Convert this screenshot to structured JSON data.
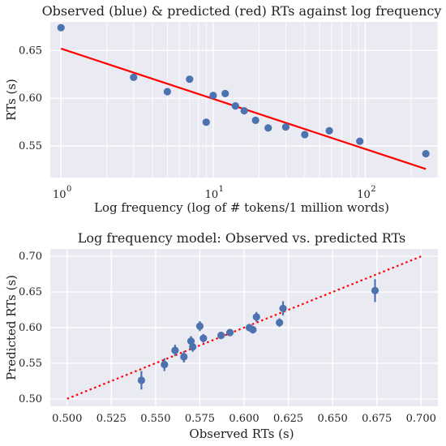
{
  "chart_data": [
    {
      "type": "scatter",
      "title": "Observed (blue) & predicted (red) RTs against log frequency",
      "xlabel": "Log frequency (log of # tokens/1 million words)",
      "ylabel": "RTs (s)",
      "xscale": "log",
      "xlim": [
        0.85,
        300
      ],
      "ylim": [
        0.517,
        0.68
      ],
      "xticks": [
        1,
        10,
        100
      ],
      "xtick_labels": [
        "10",
        "10",
        "10"
      ],
      "xtick_exponents": [
        "0",
        "1",
        "2"
      ],
      "yticks": [
        0.55,
        0.6,
        0.65
      ],
      "ytick_labels": [
        "0.55",
        "0.60",
        "0.65"
      ],
      "grid": true,
      "colors": {
        "observed": "#4c72b0",
        "predicted": "#ff0000",
        "background": "#eaeaf2",
        "grid": "#ffffff"
      },
      "series": [
        {
          "kind": "points",
          "x": [
            1,
            3,
            5,
            7,
            9,
            10,
            12,
            14,
            16,
            19,
            23,
            30,
            40,
            58,
            92,
            250
          ],
          "y": [
            0.674,
            0.622,
            0.607,
            0.62,
            0.575,
            0.603,
            0.605,
            0.592,
            0.587,
            0.577,
            0.569,
            0.57,
            0.562,
            0.566,
            0.555,
            0.542
          ]
        },
        {
          "kind": "line",
          "x": [
            1,
            250
          ],
          "y": [
            0.652,
            0.526
          ]
        }
      ]
    },
    {
      "type": "scatter",
      "title": "Log frequency model: Observed vs. predicted RTs",
      "xlabel": "Observed RTs (s)",
      "ylabel": "Predicted RTs (s)",
      "xlim": [
        0.4905,
        0.7095
      ],
      "ylim": [
        0.4895,
        0.7105
      ],
      "xticks": [
        0.5,
        0.525,
        0.55,
        0.575,
        0.6,
        0.625,
        0.65,
        0.675,
        0.7
      ],
      "xtick_labels": [
        "0.500",
        "0.525",
        "0.550",
        "0.575",
        "0.600",
        "0.625",
        "0.650",
        "0.675",
        "0.700"
      ],
      "yticks": [
        0.5,
        0.55,
        0.6,
        0.65,
        0.7
      ],
      "ytick_labels": [
        "0.50",
        "0.55",
        "0.60",
        "0.65",
        "0.70"
      ],
      "grid": true,
      "colors": {
        "points": "#4c72b0",
        "reference": "#ff0000",
        "background": "#eaeaf2",
        "grid": "#ffffff"
      },
      "series": [
        {
          "kind": "points_with_error",
          "x": [
            0.542,
            0.555,
            0.561,
            0.566,
            0.57,
            0.571,
            0.575,
            0.577,
            0.587,
            0.592,
            0.603,
            0.605,
            0.607,
            0.62,
            0.622,
            0.674
          ],
          "y": [
            0.526,
            0.548,
            0.568,
            0.559,
            0.581,
            0.573,
            0.602,
            0.585,
            0.589,
            0.593,
            0.6,
            0.597,
            0.615,
            0.607,
            0.627,
            0.652
          ],
          "yerr": [
            0.013,
            0.009,
            0.008,
            0.008,
            0.007,
            0.007,
            0.007,
            0.006,
            0.005,
            0.005,
            0.005,
            0.005,
            0.007,
            0.006,
            0.01,
            0.016
          ]
        },
        {
          "kind": "reference_line",
          "style": "dotted",
          "x": [
            0.5,
            0.7
          ],
          "y": [
            0.5,
            0.7
          ]
        }
      ]
    }
  ]
}
